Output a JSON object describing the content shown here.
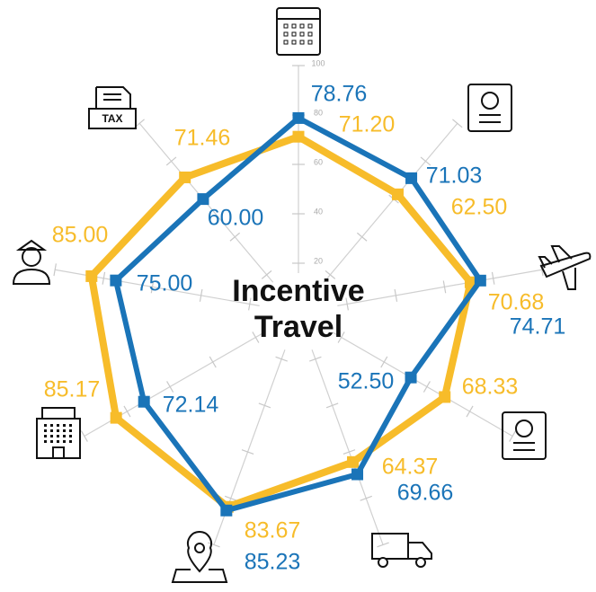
{
  "chart_data": {
    "type": "radar",
    "title": "Incentive Travel",
    "categories": [
      null,
      null,
      null,
      null,
      null,
      null,
      null,
      null,
      null
    ],
    "series": [
      {
        "color": "#f7bc2a",
        "values": [
          71.2,
          62.5,
          70.68,
          68.33,
          64.37,
          83.67,
          85.17,
          85.0,
          71.46
        ],
        "value_labels": [
          "71.20",
          "62.50",
          "70.68",
          "68.33",
          "64.37",
          "83.67",
          "85.17",
          "85.00",
          "71.46"
        ]
      },
      {
        "color": "#1a74b8",
        "values": [
          78.76,
          71.03,
          74.71,
          52.5,
          69.66,
          85.23,
          72.14,
          75.0,
          60.0
        ],
        "value_labels": [
          "78.76",
          "71.03",
          "74.71",
          "52.50",
          "69.66",
          "85.23",
          "72.14",
          "75.00",
          "60.00"
        ]
      }
    ],
    "ylim": [
      0,
      100
    ],
    "yticks": [
      20,
      40,
      60,
      80,
      100
    ],
    "grid": true
  }
}
